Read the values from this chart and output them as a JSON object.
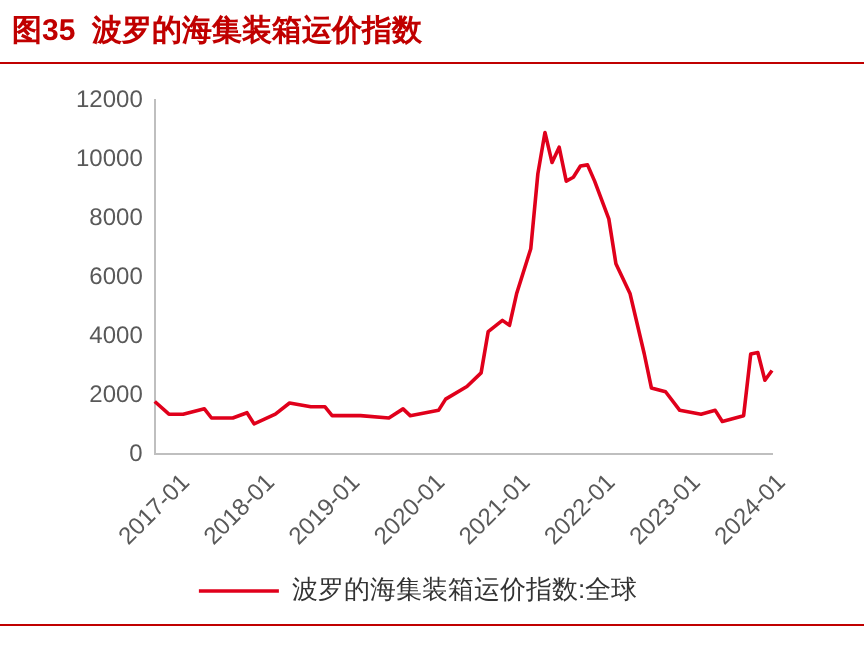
{
  "chart_data": {
    "type": "line",
    "title": "图35  波罗的海集装箱运价指数",
    "x": [
      "2017-01",
      "2017-03",
      "2017-05",
      "2017-08",
      "2017-09",
      "2017-12",
      "2018-02",
      "2018-03",
      "2018-06",
      "2018-08",
      "2018-11",
      "2019-01",
      "2019-02",
      "2019-06",
      "2019-10",
      "2019-12",
      "2020-01",
      "2020-05",
      "2020-06",
      "2020-09",
      "2020-11",
      "2020-12",
      "2021-02",
      "2021-03",
      "2021-04",
      "2021-06",
      "2021-07",
      "2021-08",
      "2021-09",
      "2021-10",
      "2021-11",
      "2021-12",
      "2022-01",
      "2022-02",
      "2022-03",
      "2022-05",
      "2022-06",
      "2022-08",
      "2022-10",
      "2022-11",
      "2023-01",
      "2023-03",
      "2023-06",
      "2023-08",
      "2023-09",
      "2023-12",
      "2024-01",
      "2024-02",
      "2024-03",
      "2024-04"
    ],
    "series": [
      {
        "name": "波罗的海集装箱运价指数:全球",
        "color": "#e0001b",
        "values": [
          1780,
          1350,
          1350,
          1530,
          1220,
          1220,
          1400,
          1020,
          1350,
          1730,
          1600,
          1600,
          1300,
          1300,
          1220,
          1530,
          1300,
          1480,
          1860,
          2290,
          2750,
          4150,
          4530,
          4360,
          5430,
          6960,
          9500,
          10900,
          9880,
          10400,
          9250,
          9380,
          9760,
          9800,
          9250,
          7970,
          6450,
          5430,
          3390,
          2240,
          2110,
          1480,
          1350,
          1480,
          1100,
          1300,
          3390,
          3440,
          2500,
          2830
        ]
      }
    ],
    "xlim": [
      "2017-01",
      "2024-04"
    ],
    "xticks": [
      "2017-01",
      "2018-01",
      "2019-01",
      "2020-01",
      "2021-01",
      "2022-01",
      "2023-01",
      "2024-01"
    ],
    "ylim": [
      0,
      12000
    ],
    "yticks": [
      0,
      2000,
      4000,
      6000,
      8000,
      10000,
      12000
    ],
    "grid": false,
    "legend": "bottom",
    "marker": "none",
    "line_style": "solid"
  }
}
